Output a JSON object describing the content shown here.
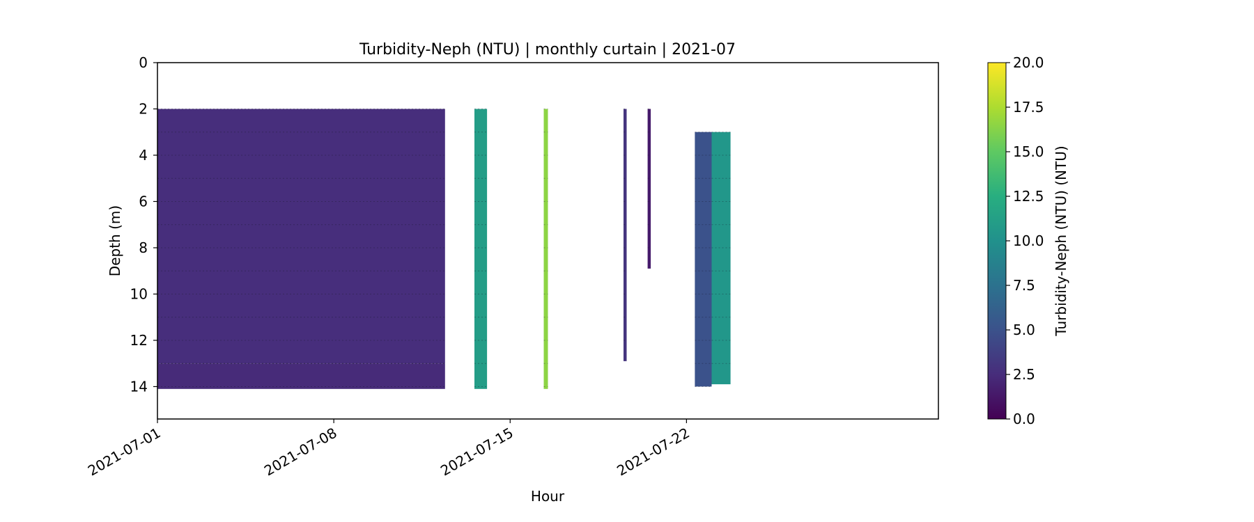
{
  "chart_data": {
    "type": "heatmap",
    "title": "Turbidity-Neph (NTU) | monthly curtain | 2021-07",
    "xlabel": "Hour",
    "ylabel": "Depth (m)",
    "x_axis": {
      "type": "date",
      "range": [
        "2021-07-01",
        "2021-08-01"
      ],
      "ticks": [
        "2021-07-01",
        "2021-07-08",
        "2021-07-15",
        "2021-07-22"
      ]
    },
    "y_axis": {
      "range": [
        15.4,
        0
      ],
      "inverted": true,
      "ticks": [
        0,
        2,
        4,
        6,
        8,
        10,
        12,
        14
      ]
    },
    "colorbar": {
      "label": "Turbidity-Neph (NTU) (NTU)",
      "colormap": "viridis",
      "range": [
        0,
        20
      ],
      "ticks": [
        "0.0",
        "2.5",
        "5.0",
        "7.5",
        "10.0",
        "12.5",
        "15.0",
        "17.5",
        "20.0"
      ]
    },
    "grid": false,
    "segments": [
      {
        "start": "2021-07-01T00:00",
        "end": "2021-07-12T10:00",
        "depth_top": 2.0,
        "depth_bottom": 13.0,
        "value": 2.6
      },
      {
        "start": "2021-07-01T00:00",
        "end": "2021-07-12T10:00",
        "depth_top": 13.0,
        "depth_bottom": 14.1,
        "value": 2.4
      },
      {
        "start": "2021-07-13T14:00",
        "end": "2021-07-14T02:00",
        "depth_top": 2.0,
        "depth_bottom": 14.1,
        "value": 11.0
      },
      {
        "start": "2021-07-16T08:00",
        "end": "2021-07-16T12:00",
        "depth_top": 2.0,
        "depth_bottom": 14.1,
        "value": 16.5
      },
      {
        "start": "2021-07-19T12:00",
        "end": "2021-07-19T15:00",
        "depth_top": 2.0,
        "depth_bottom": 12.9,
        "value": 3.0
      },
      {
        "start": "2021-07-20T11:00",
        "end": "2021-07-20T14:00",
        "depth_top": 2.0,
        "depth_bottom": 8.9,
        "value": 1.5
      },
      {
        "start": "2021-07-22T08:00",
        "end": "2021-07-23T00:00",
        "depth_top": 3.0,
        "depth_bottom": 14.0,
        "value": 5.0
      },
      {
        "start": "2021-07-23T00:00",
        "end": "2021-07-23T18:00",
        "depth_top": 3.0,
        "depth_bottom": 13.9,
        "value": 10.5
      }
    ]
  }
}
